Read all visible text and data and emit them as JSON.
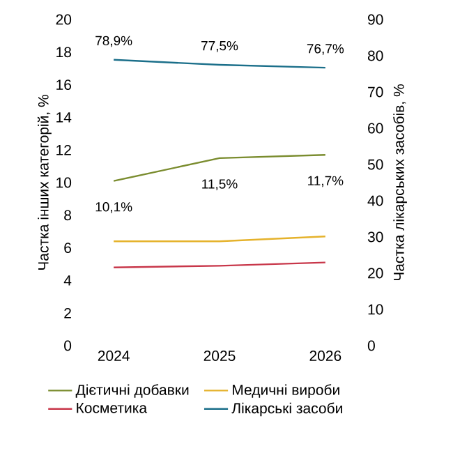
{
  "chart_data": {
    "type": "line",
    "categories": [
      "2024",
      "2025",
      "2026"
    ],
    "ylabel": "Частка інших категорій, %",
    "y2label": "Частка лікарських засобів, %",
    "ylim": [
      0,
      20
    ],
    "yticks": [
      0,
      2,
      4,
      6,
      8,
      10,
      12,
      14,
      16,
      18,
      20
    ],
    "y2lim": [
      0,
      90
    ],
    "y2ticks": [
      0,
      10,
      20,
      30,
      40,
      50,
      60,
      70,
      80,
      90
    ],
    "legend": "bottom",
    "series": [
      {
        "name": "Дієтичні добавки",
        "color": "#7a8c2e",
        "values": [
          10.1,
          11.5,
          11.7
        ],
        "value_labels": [
          "10,1%",
          "11,5%",
          "11,7%"
        ]
      },
      {
        "name": "Медичні вироби",
        "color": "#e5b22b",
        "values": [
          6.4,
          6.4,
          6.7
        ]
      },
      {
        "name": "Косметика",
        "color": "#c8374a",
        "values": [
          4.8,
          4.9,
          5.1
        ]
      },
      {
        "name": "Лікарські засоби",
        "color": "#1b6f8a",
        "values": [
          78.9,
          77.5,
          76.7
        ],
        "axis": "y2",
        "value_labels": [
          "78,9%",
          "77,5%",
          "76,7%"
        ]
      }
    ]
  }
}
